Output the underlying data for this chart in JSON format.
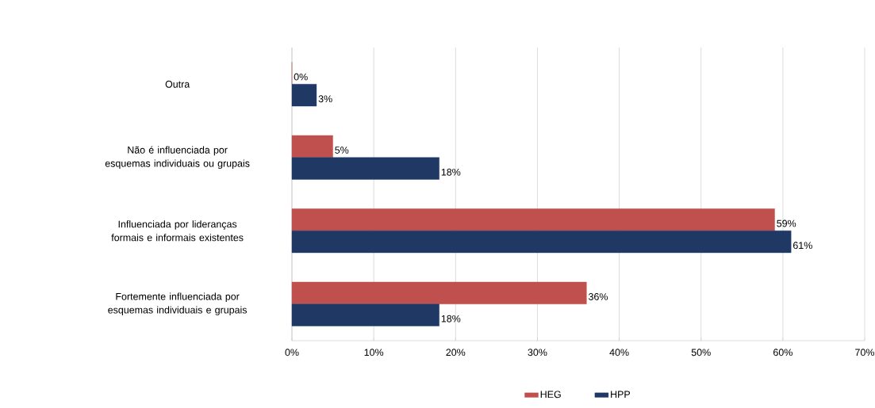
{
  "chart_data": {
    "type": "bar",
    "orientation": "horizontal",
    "categories": [
      "Outra",
      "Não é influenciada por esquemas individuais ou grupais",
      "Influenciada por lideranças formais e informais existentes",
      "Fortemente influenciada por esquemas individuais e grupais"
    ],
    "series": [
      {
        "name": "HEG",
        "color": "#c0504d",
        "values": [
          0,
          5,
          59,
          36
        ],
        "value_labels": [
          "0%",
          "5%",
          "59%",
          "36%"
        ]
      },
      {
        "name": "HPP",
        "color": "#1f3864",
        "values": [
          3,
          18,
          61,
          18
        ],
        "value_labels": [
          "3%",
          "18%",
          "61%",
          "18%"
        ]
      }
    ],
    "xlim": [
      0,
      70
    ],
    "xticks": [
      {
        "value": 0,
        "label": "0%"
      },
      {
        "value": 10,
        "label": "10%"
      },
      {
        "value": 20,
        "label": "20%"
      },
      {
        "value": 30,
        "label": "30%"
      },
      {
        "value": 40,
        "label": "40%"
      },
      {
        "value": 50,
        "label": "50%"
      },
      {
        "value": 60,
        "label": "60%"
      },
      {
        "value": 70,
        "label": "70%"
      }
    ],
    "grid": "x",
    "legend": "bottom"
  }
}
